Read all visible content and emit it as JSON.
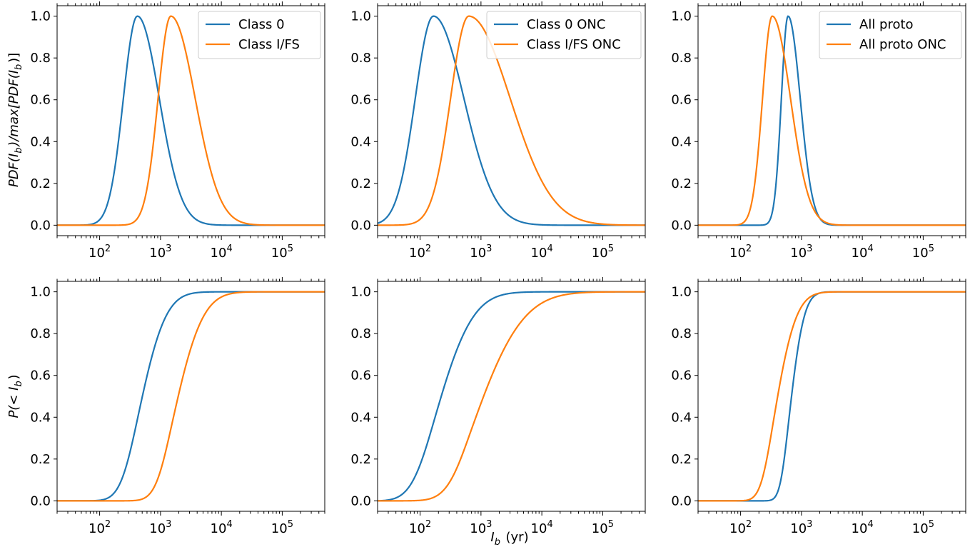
{
  "colors": {
    "blue": "#1f77b4",
    "orange": "#ff7f0e",
    "legend_border": "#cccccc"
  },
  "figure": {
    "xlabel": "I_b (yr)",
    "ylabel_top": "PDF(I_b)/max[PDF(I_b)]",
    "ylabel_bottom": "P(< I_b)"
  },
  "chart_data": [
    {
      "type": "line",
      "row": 0,
      "col": 0,
      "xscale": "log",
      "xlim": [
        20,
        500000
      ],
      "ylim": [
        -0.05,
        1.05
      ],
      "xticks": [
        100,
        1000,
        10000,
        100000
      ],
      "yticks": [
        "0.0",
        "0.2",
        "0.4",
        "0.6",
        "0.8",
        "1.0"
      ],
      "legend_position": "upper-right",
      "series": [
        {
          "name": "Class 0",
          "color": "blue",
          "kind": "pdf",
          "log10_peak": 2.62,
          "width_left": 0.23,
          "width_right": 0.36
        },
        {
          "name": "Class I/FS",
          "color": "orange",
          "kind": "pdf",
          "log10_peak": 3.17,
          "width_left": 0.21,
          "width_right": 0.4
        }
      ]
    },
    {
      "type": "line",
      "row": 0,
      "col": 1,
      "xscale": "log",
      "xlim": [
        20,
        500000
      ],
      "ylim": [
        -0.05,
        1.05
      ],
      "xticks": [
        100,
        1000,
        10000,
        100000
      ],
      "yticks": [
        "0.0",
        "0.2",
        "0.4",
        "0.6",
        "0.8",
        "1.0"
      ],
      "legend_position": "upper-right",
      "series": [
        {
          "name": "Class 0 ONC",
          "color": "blue",
          "kind": "pdf",
          "log10_peak": 2.22,
          "width_left": 0.3,
          "width_right": 0.5
        },
        {
          "name": "Class I/FS ONC",
          "color": "orange",
          "kind": "pdf",
          "log10_peak": 2.8,
          "width_left": 0.3,
          "width_right": 0.68
        }
      ]
    },
    {
      "type": "line",
      "row": 0,
      "col": 2,
      "xscale": "log",
      "xlim": [
        20,
        500000
      ],
      "ylim": [
        -0.05,
        1.05
      ],
      "xticks": [
        100,
        1000,
        10000,
        100000
      ],
      "yticks": [
        "0.0",
        "0.2",
        "0.4",
        "0.6",
        "0.8",
        "1.0"
      ],
      "legend_position": "upper-right",
      "series": [
        {
          "name": "All proto",
          "color": "blue",
          "kind": "pdf",
          "log10_peak": 2.78,
          "width_left": 0.11,
          "width_right": 0.2
        },
        {
          "name": "All proto ONC",
          "color": "orange",
          "kind": "pdf",
          "log10_peak": 2.52,
          "width_left": 0.16,
          "width_right": 0.3
        }
      ]
    },
    {
      "type": "line",
      "row": 1,
      "col": 0,
      "xscale": "log",
      "xlim": [
        20,
        500000
      ],
      "ylim": [
        -0.05,
        1.05
      ],
      "xticks": [
        100,
        1000,
        10000,
        100000
      ],
      "yticks": [
        "0.0",
        "0.2",
        "0.4",
        "0.6",
        "0.8",
        "1.0"
      ],
      "series": [
        {
          "color": "blue",
          "kind": "cdf",
          "log10_peak": 2.62,
          "width_left": 0.23,
          "width_right": 0.36
        },
        {
          "color": "orange",
          "kind": "cdf",
          "log10_peak": 3.17,
          "width_left": 0.21,
          "width_right": 0.4
        }
      ]
    },
    {
      "type": "line",
      "row": 1,
      "col": 1,
      "xscale": "log",
      "xlim": [
        20,
        500000
      ],
      "ylim": [
        -0.05,
        1.05
      ],
      "xticks": [
        100,
        1000,
        10000,
        100000
      ],
      "yticks": [
        "0.0",
        "0.2",
        "0.4",
        "0.6",
        "0.8",
        "1.0"
      ],
      "series": [
        {
          "color": "blue",
          "kind": "cdf",
          "log10_peak": 2.22,
          "width_left": 0.3,
          "width_right": 0.5
        },
        {
          "color": "orange",
          "kind": "cdf",
          "log10_peak": 2.8,
          "width_left": 0.3,
          "width_right": 0.68
        }
      ]
    },
    {
      "type": "line",
      "row": 1,
      "col": 2,
      "xscale": "log",
      "xlim": [
        20,
        500000
      ],
      "ylim": [
        -0.05,
        1.05
      ],
      "xticks": [
        100,
        1000,
        10000,
        100000
      ],
      "yticks": [
        "0.0",
        "0.2",
        "0.4",
        "0.6",
        "0.8",
        "1.0"
      ],
      "series": [
        {
          "color": "blue",
          "kind": "cdf",
          "log10_peak": 2.78,
          "width_left": 0.11,
          "width_right": 0.2
        },
        {
          "color": "orange",
          "kind": "cdf",
          "log10_peak": 2.52,
          "width_left": 0.16,
          "width_right": 0.3
        }
      ]
    }
  ]
}
